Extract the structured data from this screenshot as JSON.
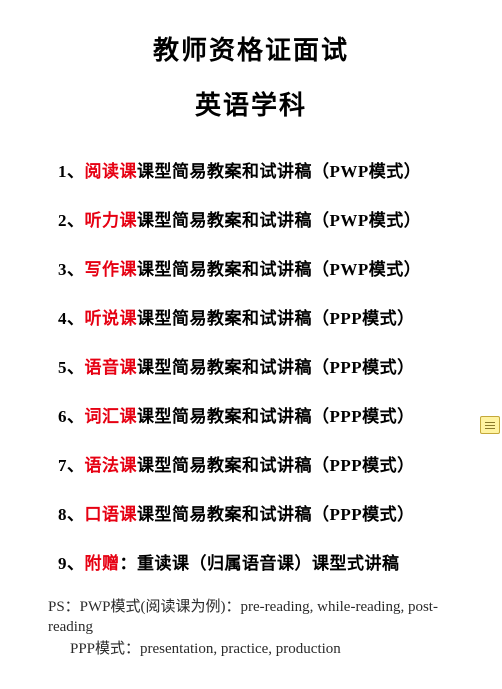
{
  "title": {
    "main": "教师资格证面试",
    "sub": "英语学科"
  },
  "items": [
    {
      "num": "1、",
      "highlight": "阅读课",
      "rest": "课型简易教案和试讲稿（PWP模式）"
    },
    {
      "num": "2、",
      "highlight": "听力课",
      "rest": "课型简易教案和试讲稿（PWP模式）"
    },
    {
      "num": "3、",
      "highlight": "写作课",
      "rest": "课型简易教案和试讲稿（PWP模式）"
    },
    {
      "num": "4、",
      "highlight": "听说课",
      "rest": "课型简易教案和试讲稿（PPP模式）"
    },
    {
      "num": "5、",
      "highlight": "语音课",
      "rest": "课型简易教案和试讲稿（PPP模式）"
    },
    {
      "num": "6、",
      "highlight": "词汇课",
      "rest": "课型简易教案和试讲稿（PPP模式）"
    },
    {
      "num": "7、",
      "highlight": "语法课",
      "rest": "课型简易教案和试讲稿（PPP模式）"
    },
    {
      "num": "8、",
      "highlight": "口语课",
      "rest": "课型简易教案和试讲稿（PPP模式）"
    },
    {
      "num": "9、",
      "highlight": "附赠",
      "rest": "：重读课（归属语音课）课型式讲稿"
    }
  ],
  "footer": {
    "line1": "PS：PWP模式(阅读课为例)：pre-reading, while-reading, post-reading",
    "line2": "PPP模式：presentation, practice, production"
  },
  "colors": {
    "highlight": "#e60012",
    "text": "#000000",
    "background": "#ffffff",
    "note_bg": "#fff3a0",
    "note_border": "#c4a83a"
  }
}
